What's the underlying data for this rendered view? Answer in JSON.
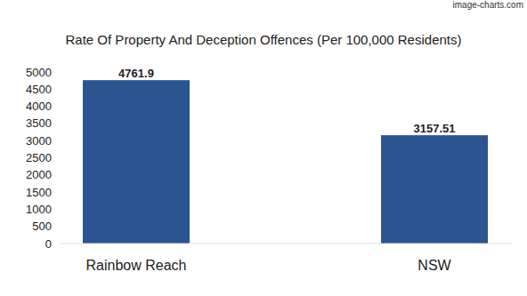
{
  "chart_data": {
    "type": "bar",
    "title": "Rate Of Property And Deception Offences (Per 100,000 Residents)",
    "watermark": "image-charts.com",
    "categories": [
      "Rainbow Reach",
      "NSW"
    ],
    "values": [
      4761.9,
      3157.51
    ],
    "color": "#2b5591",
    "ylim": [
      0,
      5000
    ],
    "yticks": [
      0,
      500,
      1000,
      1500,
      2000,
      2500,
      3000,
      3500,
      4000,
      4500,
      5000
    ],
    "grid": false,
    "data_labels": true
  }
}
